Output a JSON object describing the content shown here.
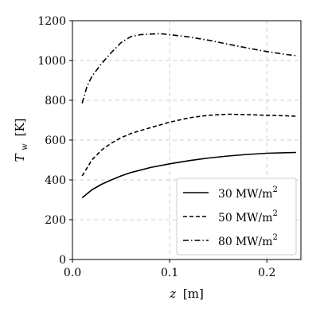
{
  "chart_data": {
    "type": "line",
    "xlabel_var": "z",
    "xlabel_unit": "[m]",
    "ylabel_var": "T",
    "ylabel_sub": "w",
    "ylabel_unit": "[K]",
    "xlim": [
      0.0,
      0.235
    ],
    "ylim": [
      0,
      1200
    ],
    "xticks": [
      0.0,
      0.1,
      0.2
    ],
    "xtick_labels": [
      "0.0",
      "0.1",
      "0.2"
    ],
    "yticks": [
      0,
      200,
      400,
      600,
      800,
      1000,
      1200
    ],
    "ytick_labels": [
      "0",
      "200",
      "400",
      "600",
      "800",
      "1000",
      "1200"
    ],
    "grid": true,
    "legend_position": "bottom-right",
    "series": [
      {
        "name": "30 MW/m²",
        "name_value": "30",
        "name_unit": "MW/m",
        "name_sup": "2",
        "style": "solid",
        "x": [
          0.01,
          0.02,
          0.03,
          0.04,
          0.05,
          0.06,
          0.08,
          0.1,
          0.12,
          0.14,
          0.16,
          0.18,
          0.2,
          0.22,
          0.23
        ],
        "y": [
          310,
          350,
          378,
          400,
          420,
          437,
          462,
          481,
          497,
          510,
          520,
          528,
          534,
          537,
          538
        ]
      },
      {
        "name": "50 MW/m²",
        "name_value": "50",
        "name_unit": "MW/m",
        "name_sup": "2",
        "style": "dashed",
        "x": [
          0.01,
          0.02,
          0.03,
          0.04,
          0.05,
          0.06,
          0.07,
          0.08,
          0.1,
          0.12,
          0.14,
          0.16,
          0.18,
          0.2,
          0.22,
          0.23
        ],
        "y": [
          420,
          500,
          550,
          585,
          612,
          633,
          648,
          662,
          690,
          712,
          725,
          730,
          728,
          725,
          722,
          720
        ]
      },
      {
        "name": "80 MW/m²",
        "name_value": "80",
        "name_unit": "MW/m",
        "name_sup": "2",
        "style": "dashdot",
        "x": [
          0.01,
          0.015,
          0.02,
          0.03,
          0.04,
          0.05,
          0.06,
          0.07,
          0.08,
          0.09,
          0.1,
          0.12,
          0.14,
          0.16,
          0.18,
          0.2,
          0.22,
          0.23
        ],
        "y": [
          785,
          870,
          920,
          985,
          1040,
          1090,
          1120,
          1130,
          1133,
          1135,
          1130,
          1118,
          1102,
          1082,
          1063,
          1045,
          1030,
          1025
        ]
      }
    ]
  }
}
